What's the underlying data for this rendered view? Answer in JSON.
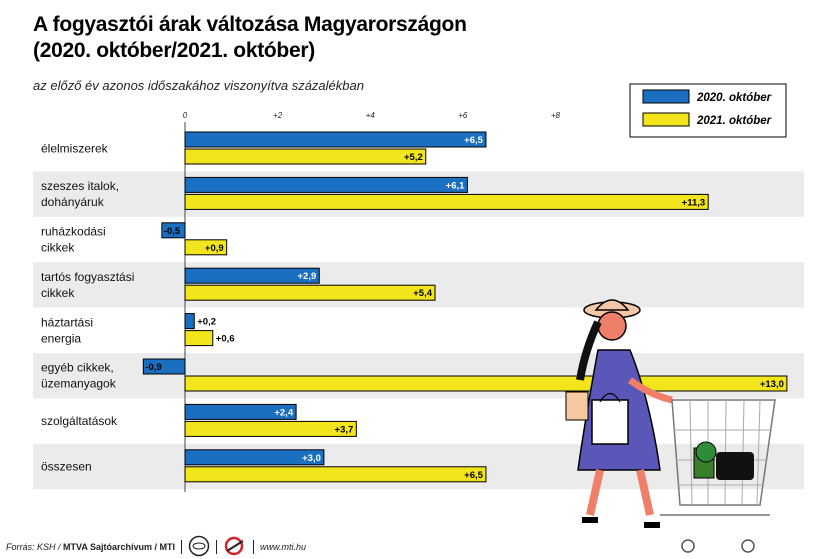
{
  "title_line1": "A fogyasztói árak változása Magyarországon",
  "title_line2": "(2020. október/2021. október)",
  "subtitle": "az előző év azonos időszakához viszonyítva százalékban",
  "footer": {
    "source": "Forrás: KSH / ",
    "archive": "MTVA Sajtóarchívum / MTI",
    "url": "www.mti.hu"
  },
  "colors": {
    "s2020": "#1b6fc0",
    "s2021": "#f2e51b",
    "band": "#ebebeb",
    "border": "#000000"
  },
  "chart_data": {
    "type": "bar",
    "orientation": "horizontal",
    "categories": [
      "élelmiszerek",
      "szeszes italok, dohányáruk",
      "ruházkodási cikkek",
      "tartós fogyasztási cikkek",
      "háztartási energia",
      "egyéb cikkek, üzemanyagok",
      "szolgáltatások",
      "összesen"
    ],
    "category_lines": [
      [
        "élelmiszerek"
      ],
      [
        "szeszes italok,",
        "dohányáruk"
      ],
      [
        "ruházkodási",
        "cikkek"
      ],
      [
        "tartós fogyasztási",
        "cikkek"
      ],
      [
        "háztartási",
        "energia"
      ],
      [
        "egyéb cikkek,",
        "üzemanyagok"
      ],
      [
        "szolgáltatások"
      ],
      [
        "összesen"
      ]
    ],
    "series": [
      {
        "name": "2020. október",
        "values": [
          6.5,
          6.1,
          -0.5,
          2.9,
          0.2,
          -0.9,
          2.4,
          3.0
        ],
        "labels": [
          "+6,5",
          "+6,1",
          "-0,5",
          "+2,9",
          "+0,2",
          "-0,9",
          "+2,4",
          "+3,0"
        ]
      },
      {
        "name": "2021. október",
        "values": [
          5.2,
          11.3,
          0.9,
          5.4,
          0.6,
          13.0,
          3.7,
          6.5
        ],
        "labels": [
          "+5,2",
          "+11,3",
          "+0,9",
          "+5,4",
          "+0,6",
          "+13,0",
          "+3,7",
          "+6,5"
        ]
      }
    ],
    "xticks": [
      0,
      2,
      4,
      6,
      8
    ],
    "xtick_labels": [
      "0",
      "+2",
      "+4",
      "+6",
      "+8"
    ],
    "xlim": [
      -0.9,
      13.0
    ],
    "legend_position": "top-right"
  }
}
